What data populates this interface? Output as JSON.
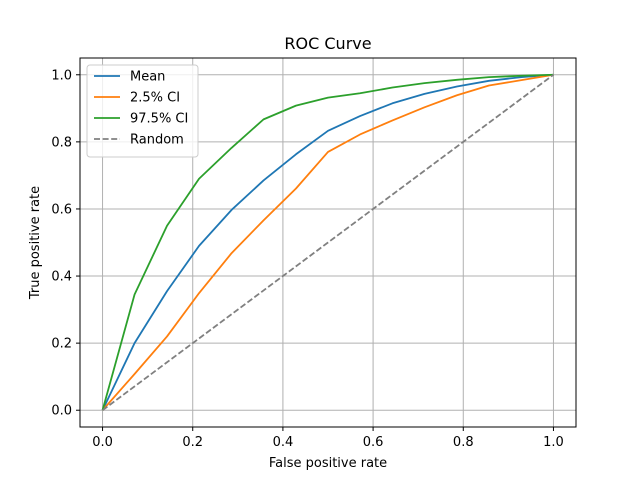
{
  "chart_data": {
    "type": "line",
    "title": "ROC Curve",
    "xlabel": "False positive rate",
    "ylabel": "True positive rate",
    "xlim": [
      -0.05,
      1.05
    ],
    "ylim": [
      -0.05,
      1.05
    ],
    "xticks": [
      0.0,
      0.2,
      0.4,
      0.6,
      0.8,
      1.0
    ],
    "yticks": [
      0.0,
      0.2,
      0.4,
      0.6,
      0.8,
      1.0
    ],
    "xtick_labels": [
      "0.0",
      "0.2",
      "0.4",
      "0.6",
      "0.8",
      "1.0"
    ],
    "ytick_labels": [
      "0.0",
      "0.2",
      "0.4",
      "0.6",
      "0.8",
      "1.0"
    ],
    "grid": true,
    "legend_position": "top-left",
    "series": [
      {
        "name": "Mean",
        "color": "#1f77b4",
        "dash": "solid",
        "x": [
          0.0,
          0.071,
          0.143,
          0.214,
          0.286,
          0.357,
          0.429,
          0.5,
          0.571,
          0.643,
          0.714,
          0.786,
          0.857,
          0.929,
          1.0
        ],
        "y": [
          0.0,
          0.2,
          0.355,
          0.49,
          0.597,
          0.685,
          0.763,
          0.833,
          0.877,
          0.915,
          0.943,
          0.965,
          0.982,
          0.993,
          1.0
        ]
      },
      {
        "name": "2.5% CI",
        "color": "#ff7f0e",
        "dash": "solid",
        "x": [
          0.0,
          0.071,
          0.143,
          0.214,
          0.286,
          0.357,
          0.429,
          0.5,
          0.571,
          0.643,
          0.714,
          0.786,
          0.857,
          0.929,
          1.0
        ],
        "y": [
          0.0,
          0.108,
          0.22,
          0.349,
          0.468,
          0.566,
          0.661,
          0.77,
          0.822,
          0.864,
          0.903,
          0.939,
          0.968,
          0.984,
          1.0
        ]
      },
      {
        "name": "97.5% CI",
        "color": "#2ca02c",
        "dash": "solid",
        "x": [
          0.0,
          0.071,
          0.143,
          0.214,
          0.286,
          0.357,
          0.429,
          0.5,
          0.571,
          0.643,
          0.714,
          0.786,
          0.857,
          0.929,
          1.0
        ],
        "y": [
          0.0,
          0.345,
          0.55,
          0.69,
          0.782,
          0.867,
          0.908,
          0.932,
          0.945,
          0.962,
          0.975,
          0.985,
          0.993,
          0.997,
          1.0
        ]
      },
      {
        "name": "Random",
        "color": "#808080",
        "dash": "dashed",
        "x": [
          0.0,
          1.0
        ],
        "y": [
          0.0,
          1.0
        ]
      }
    ]
  }
}
